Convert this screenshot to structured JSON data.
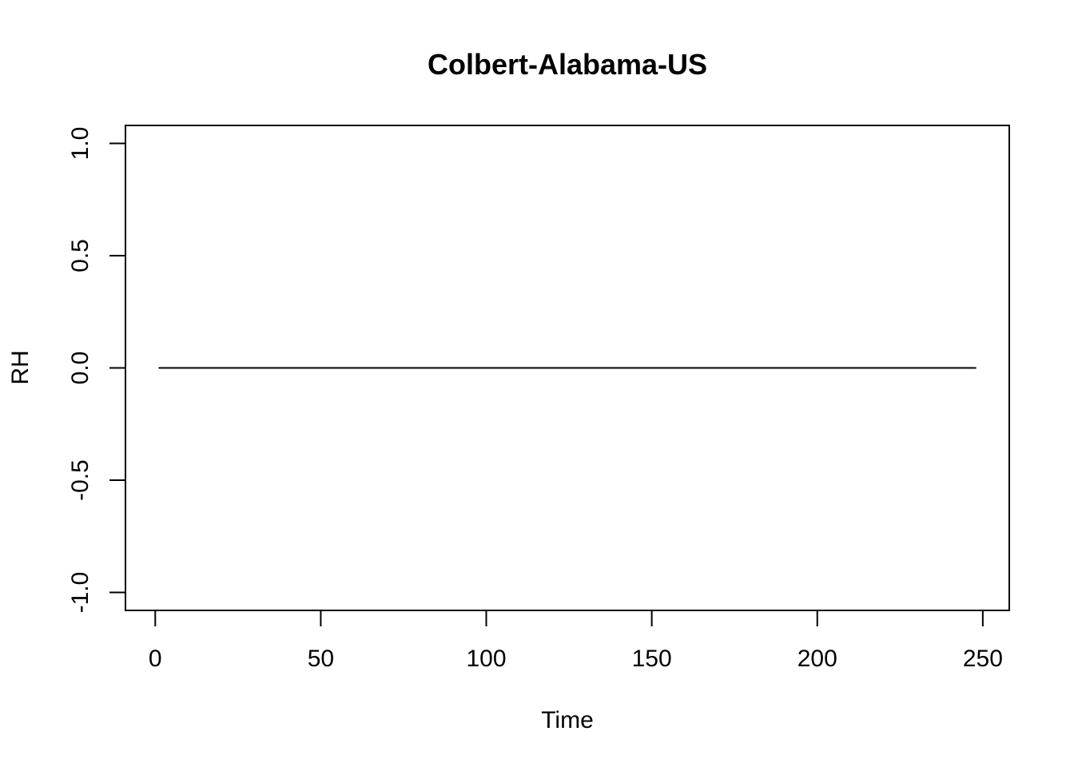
{
  "chart_data": {
    "type": "line",
    "title": "Colbert-Alabama-US",
    "xlabel": "Time",
    "ylabel": "RH",
    "xlim": [
      -9,
      258
    ],
    "ylim": [
      -1.08,
      1.08
    ],
    "x_ticks": [
      0,
      50,
      100,
      150,
      200,
      250
    ],
    "x_tick_labels": [
      "0",
      "50",
      "100",
      "150",
      "200",
      "250"
    ],
    "y_ticks": [
      -1.0,
      -0.5,
      0.0,
      0.5,
      1.0
    ],
    "y_tick_labels": [
      "-1.0",
      "-0.5",
      "0.0",
      "0.5",
      "1.0"
    ],
    "grid": false,
    "series": [
      {
        "x": [
          1,
          248
        ],
        "y": [
          0,
          0
        ],
        "color": "#000000"
      }
    ]
  }
}
